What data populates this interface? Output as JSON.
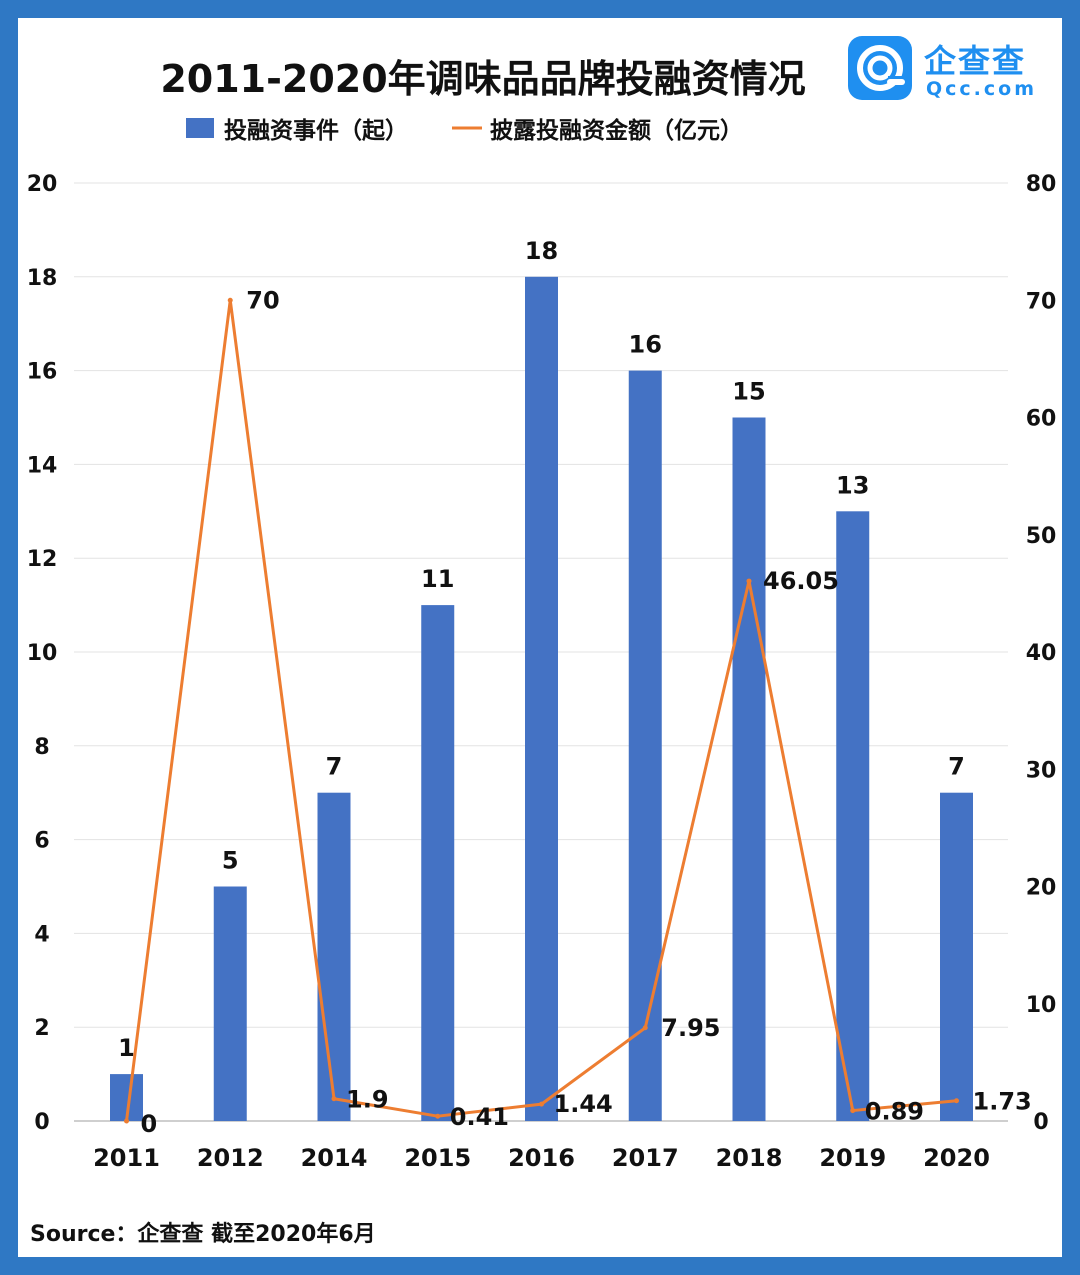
{
  "header": {
    "title": "2011-2020年调味品品牌投融资情况",
    "logo_name": "企查查",
    "logo_domain": "Qcc.com",
    "logo_icon": "qcc-logo-icon"
  },
  "footer": {
    "source": "Source：企查查   截至2020年6月"
  },
  "colors": {
    "bar": "#4472c4",
    "line": "#ed7d31",
    "frame": "#2f78c4",
    "brand": "#1f8ff0"
  },
  "chart_data": {
    "type": "bar+line",
    "categories": [
      "2011",
      "2012",
      "2014",
      "2015",
      "2016",
      "2017",
      "2018",
      "2019",
      "2020"
    ],
    "series": [
      {
        "name": "投融资事件（起）",
        "type": "bar",
        "axis": "left",
        "values": [
          1,
          5,
          7,
          11,
          18,
          16,
          15,
          13,
          7
        ]
      },
      {
        "name": "披露投融资金额（亿元）",
        "type": "line",
        "axis": "right",
        "values": [
          0,
          70,
          1.9,
          0.41,
          1.44,
          7.95,
          46.05,
          0.89,
          1.73
        ]
      }
    ],
    "left_axis": {
      "min": 0,
      "max": 20,
      "ticks": [
        0,
        2,
        4,
        6,
        8,
        10,
        12,
        14,
        16,
        18,
        20
      ]
    },
    "right_axis": {
      "min": 0,
      "max": 80,
      "ticks": [
        0,
        10,
        20,
        30,
        40,
        50,
        60,
        70,
        80
      ]
    },
    "legend_position": "top",
    "grid": true
  }
}
